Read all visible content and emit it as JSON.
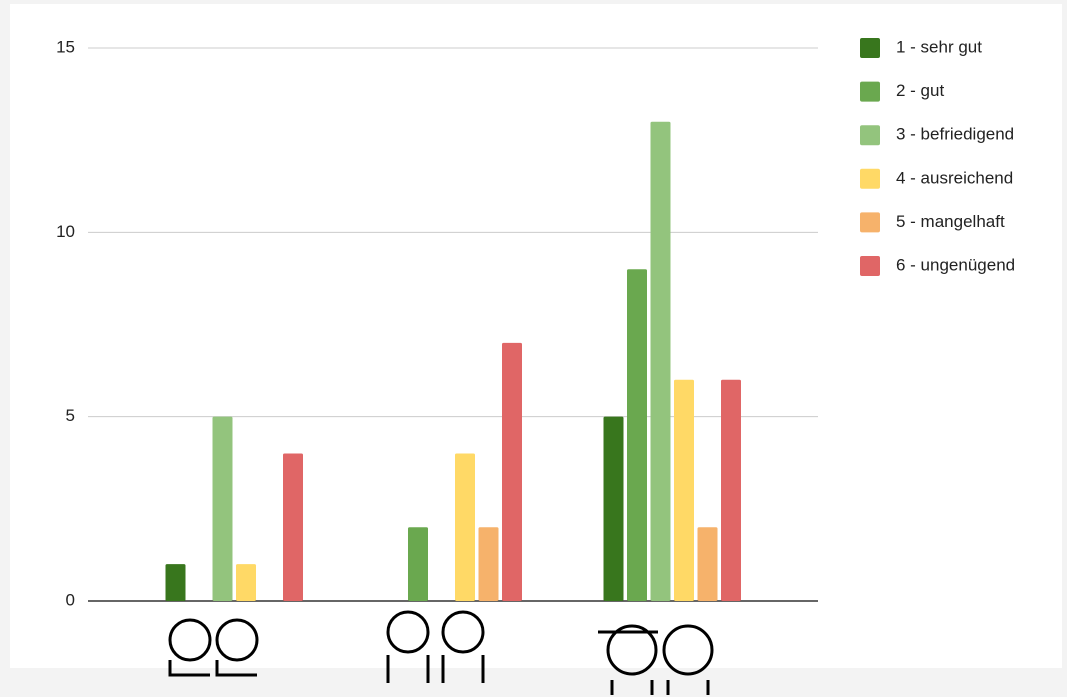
{
  "chart_data": {
    "type": "bar",
    "categories": [
      null,
      null,
      null
    ],
    "series": [
      {
        "name": "1 - sehr gut",
        "color": "#38761d",
        "values": [
          1,
          0,
          5
        ]
      },
      {
        "name": "2 - gut",
        "color": "#6aa84f",
        "values": [
          0,
          2,
          9
        ]
      },
      {
        "name": "3 - befriedigend",
        "color": "#93c47d",
        "values": [
          5,
          0,
          13
        ]
      },
      {
        "name": "4 - ausreichend",
        "color": "#ffd966",
        "values": [
          1,
          4,
          6
        ]
      },
      {
        "name": "5 - mangelhaft",
        "color": "#f6b26b",
        "values": [
          0,
          2,
          2
        ]
      },
      {
        "name": "6 - ungenügend",
        "color": "#e06666",
        "values": [
          4,
          7,
          6
        ]
      }
    ],
    "ylim": [
      0,
      15
    ],
    "yticks": [
      0,
      5,
      10,
      15
    ],
    "grid": true,
    "legend": "right"
  }
}
